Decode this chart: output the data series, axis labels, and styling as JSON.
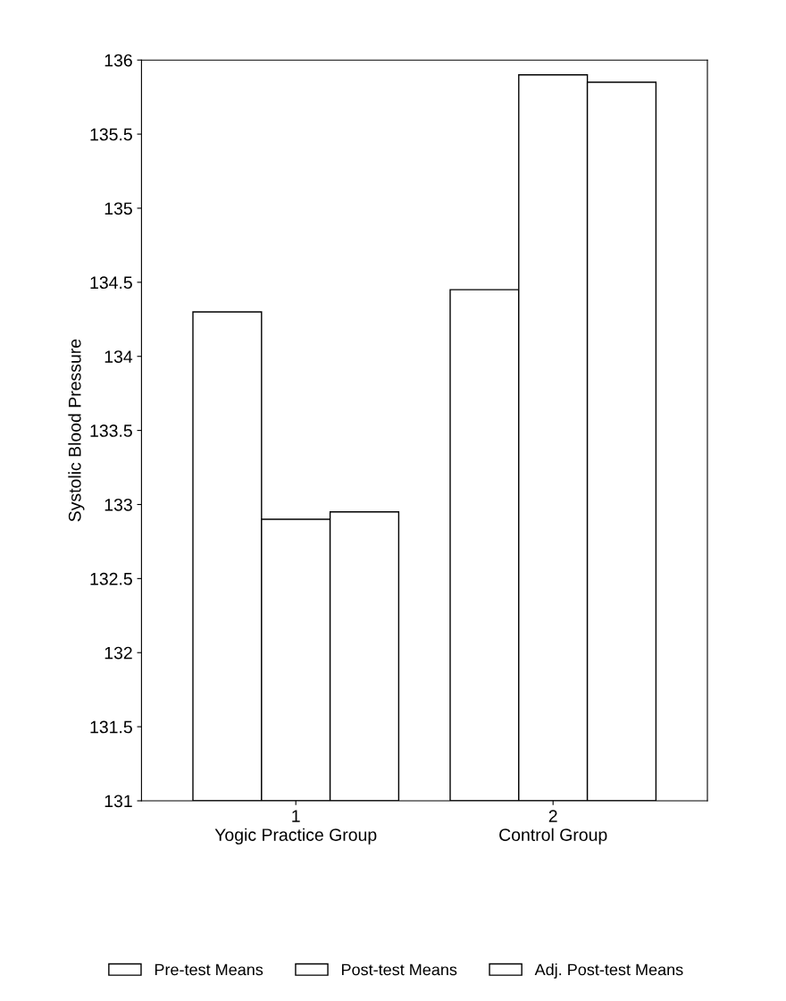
{
  "chart_data": {
    "type": "bar",
    "ylabel": "Systolic Blood Pressure",
    "categories": [
      "1\nYogic Practice Group",
      "2\nControl Group"
    ],
    "series": [
      {
        "name": "Pre-test Means",
        "color": "#ffffff",
        "values": [
          134.3,
          134.45
        ]
      },
      {
        "name": "Post-test Means",
        "color": "#ffffff",
        "values": [
          132.9,
          135.9
        ]
      },
      {
        "name": "Adj. Post-test Means",
        "color": "#ffffff",
        "values": [
          132.95,
          135.85
        ]
      }
    ],
    "ylim": [
      131,
      136
    ],
    "yticks": [
      131,
      131.5,
      132,
      132.5,
      133,
      133.5,
      134,
      134.5,
      135,
      135.5,
      136
    ],
    "grid": false,
    "legend": "bottom"
  }
}
